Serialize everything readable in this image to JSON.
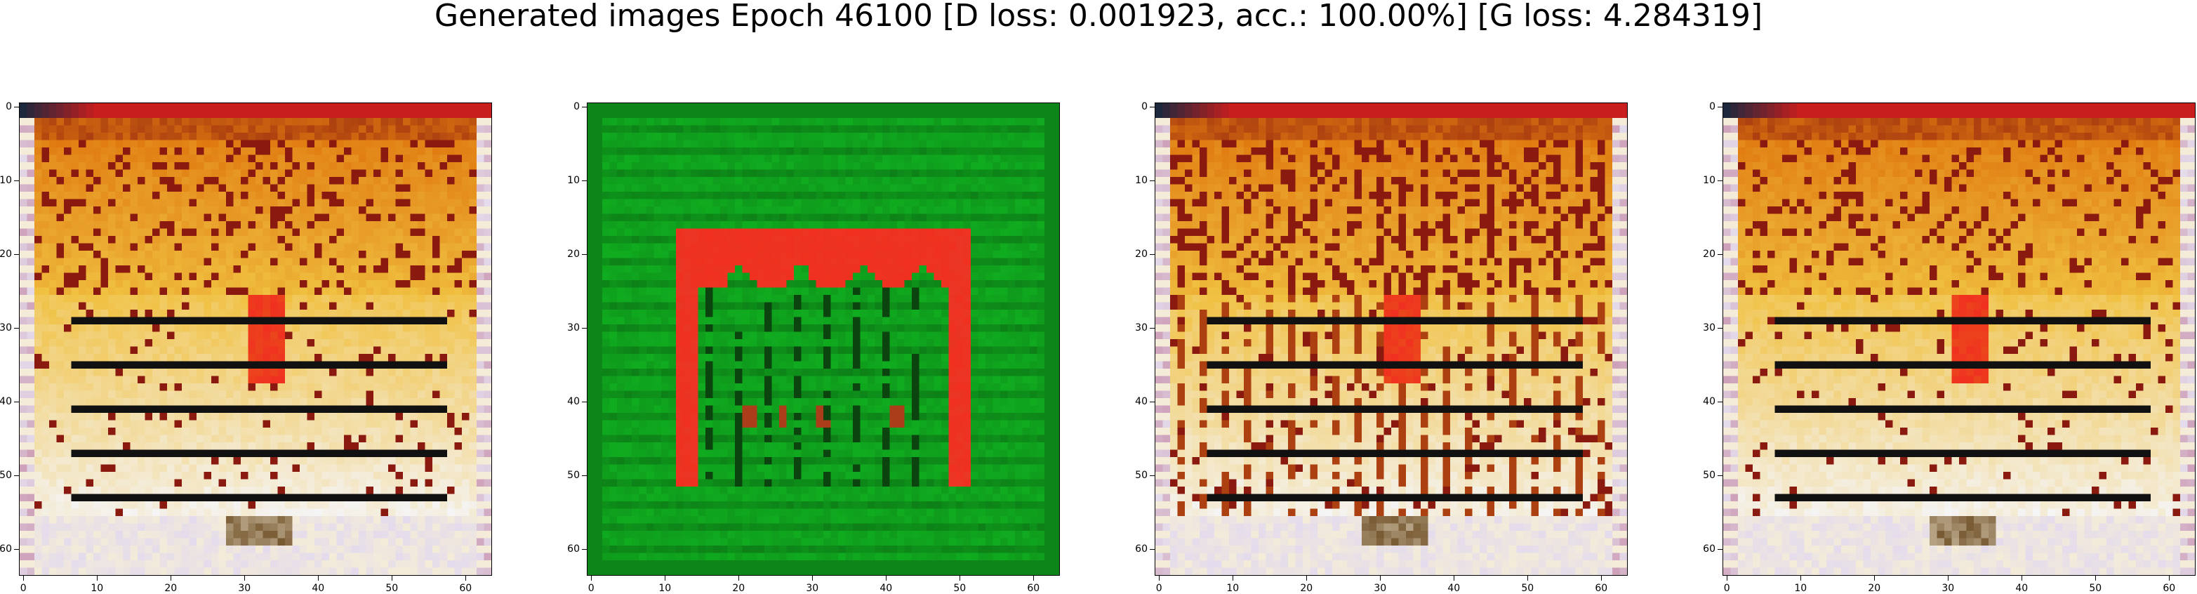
{
  "figure": {
    "title": "Generated images Epoch 46100 [D loss: 0.001923, acc.: 100.00%] [G loss: 4.284319]"
  },
  "chart_data": [
    {
      "type": "heatmap",
      "variant": "warm-building",
      "title": "",
      "xlabel": "",
      "ylabel": "",
      "xlim": [
        -0.5,
        63.5
      ],
      "ylim": [
        63.5,
        -0.5
      ],
      "x_ticks": [
        "0",
        "10",
        "20",
        "30",
        "40",
        "50",
        "60"
      ],
      "y_ticks": [
        "0",
        "10",
        "20",
        "30",
        "40",
        "50",
        "60"
      ]
    },
    {
      "type": "heatmap",
      "variant": "green-arch",
      "title": "",
      "xlabel": "",
      "ylabel": "",
      "xlim": [
        -0.5,
        63.5
      ],
      "ylim": [
        63.5,
        -0.5
      ],
      "x_ticks": [
        "0",
        "10",
        "20",
        "30",
        "40",
        "50",
        "60"
      ],
      "y_ticks": [
        "0",
        "10",
        "20",
        "30",
        "40",
        "50",
        "60"
      ]
    },
    {
      "type": "heatmap",
      "variant": "warm-building",
      "title": "",
      "xlabel": "",
      "ylabel": "",
      "xlim": [
        -0.5,
        63.5
      ],
      "ylim": [
        63.5,
        -0.5
      ],
      "x_ticks": [
        "0",
        "10",
        "20",
        "30",
        "40",
        "50",
        "60"
      ],
      "y_ticks": [
        "0",
        "10",
        "20",
        "30",
        "40",
        "50",
        "60"
      ]
    },
    {
      "type": "heatmap",
      "variant": "warm-building",
      "title": "",
      "xlabel": "",
      "ylabel": "",
      "xlim": [
        -0.5,
        63.5
      ],
      "ylim": [
        63.5,
        -0.5
      ],
      "x_ticks": [
        "0",
        "10",
        "20",
        "30",
        "40",
        "50",
        "60"
      ],
      "y_ticks": [
        "0",
        "10",
        "20",
        "30",
        "40",
        "50",
        "60"
      ]
    }
  ],
  "colors": {
    "orange": "#e07a10",
    "gold": "#f0c040",
    "dark_red": "#8a1a10",
    "red": "#f03020",
    "cream": "#f4ecd8",
    "lavender": "#e4dcec",
    "green": "#10b020",
    "dark_green": "#0a5a10",
    "black": "#111111"
  }
}
